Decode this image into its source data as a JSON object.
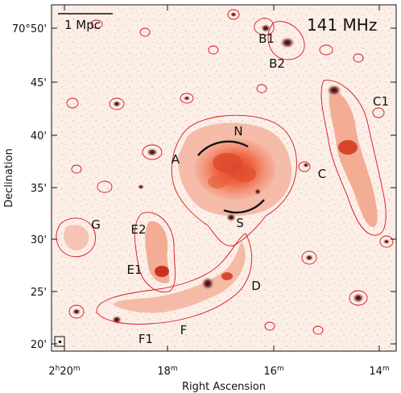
{
  "chart_data": {
    "type": "map",
    "title": "141 MHz",
    "xlabel": "Right Ascension",
    "ylabel": "Declination",
    "scale_bar": "1 Mpc",
    "x_ticks": [
      {
        "h": "2",
        "m": "20",
        "suffix": "m"
      },
      {
        "h": "",
        "m": "18",
        "suffix": "m"
      },
      {
        "h": "",
        "m": "16",
        "suffix": "m"
      },
      {
        "h": "",
        "m": "14",
        "suffix": "m"
      }
    ],
    "y_ticks": [
      "70°50'",
      "45'",
      "40'",
      "35'",
      "30'",
      "25'",
      "20'"
    ],
    "x_range_min": [
      2.337,
      2.229
    ],
    "y_range_arcmin": [
      19.4,
      52.6
    ],
    "regions": [
      {
        "name": "N"
      },
      {
        "name": "S"
      },
      {
        "name": "A"
      },
      {
        "name": "B1"
      },
      {
        "name": "B2"
      },
      {
        "name": "C1"
      },
      {
        "name": "C"
      },
      {
        "name": "D"
      },
      {
        "name": "E1"
      },
      {
        "name": "E2"
      },
      {
        "name": "F"
      },
      {
        "name": "F1"
      },
      {
        "name": "G"
      }
    ],
    "colors": {
      "contour": "#d8141a",
      "background": "#fbeee7",
      "emission": "#e8583c",
      "core": "#7a1010"
    }
  }
}
